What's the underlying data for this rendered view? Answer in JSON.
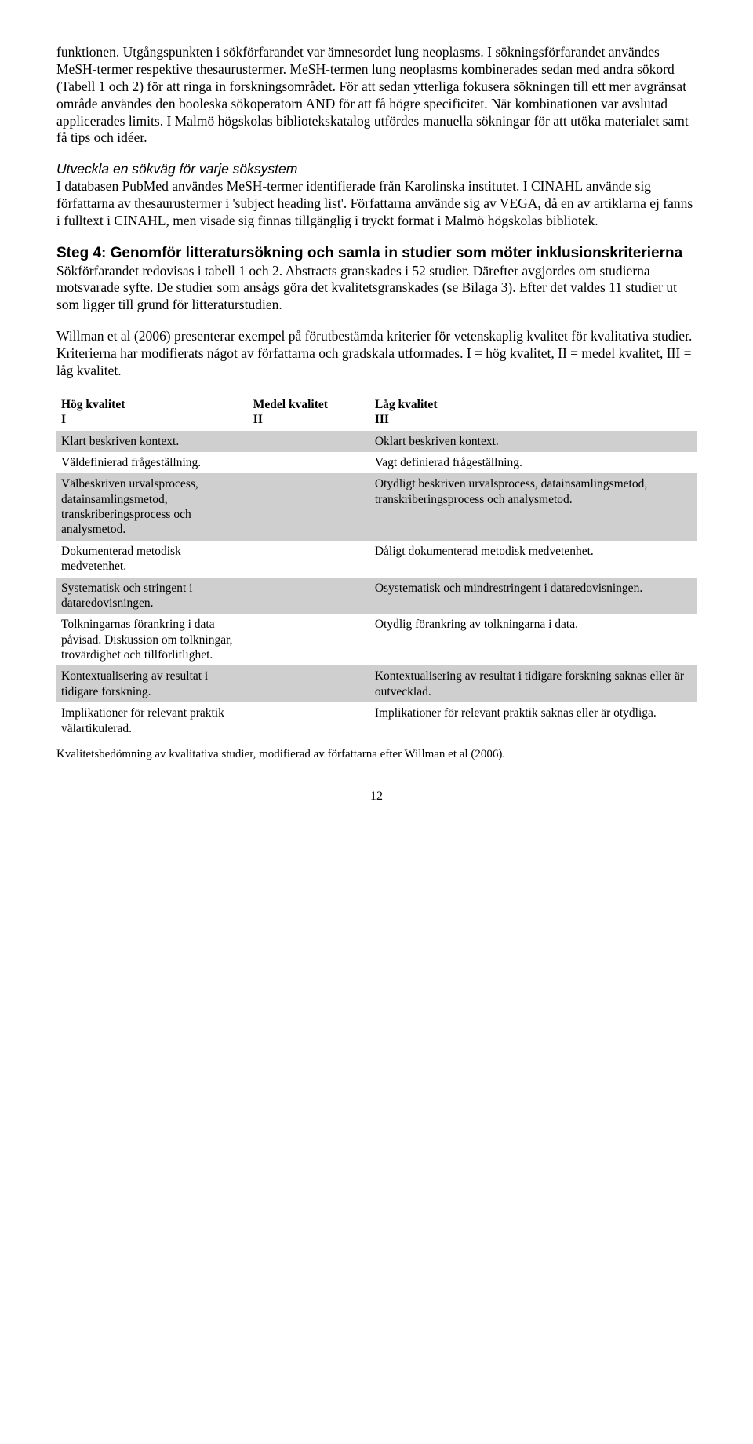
{
  "intro_para": "funktionen. Utgångspunkten i sökförfarandet var ämnesordet lung neoplasms. I sökningsförfarandet användes MeSH-termer respektive thesaurustermer. MeSH-termen lung neoplasms kombinerades sedan med andra sökord (Tabell 1 och 2) för att ringa in forskningsområdet. För att sedan ytterliga fokusera sökningen till ett mer avgränsat område användes den booleska sökoperatorn AND för att få högre specificitet. När kombinationen var avslutad applicerades limits. I Malmö högskolas bibliotekskatalog utfördes manuella sökningar för att utöka materialet samt få tips och idéer.",
  "sub1_heading": "Utveckla en sökväg för varje söksystem",
  "sub1_para": "I databasen PubMed användes MeSH-termer identifierade från Karolinska institutet. I CINAHL använde sig författarna av thesaurustermer i 'subject heading list'. Författarna använde sig av VEGA, då en av artiklarna ej fanns i fulltext i CINAHL, men visade sig finnas tillgänglig i tryckt format i Malmö högskolas bibliotek.",
  "h2_step4": "Steg 4: Genomför litteratursökning och samla in studier som möter inklusionskriterierna",
  "step4_para": "Sökförfarandet redovisas i tabell 1 och 2. Abstracts granskades i 52 studier. Därefter avgjordes om studierna motsvarade syfte. De studier som ansågs göra det kvalitetsgranskades (se Bilaga 3). Efter det valdes 11 studier ut som ligger till grund för litteraturstudien.",
  "willman_para": "Willman et al (2006) presenterar exempel på förutbestämda kriterier för vetenskaplig kvalitet för kvalitativa studier. Kriterierna har modifierats något av författarna och gradskala utformades. I = hög kvalitet, II = medel kvalitet, III = låg kvalitet.",
  "table": {
    "header": {
      "c1a": "Hög kvalitet",
      "c1b": "I",
      "c2a": "Medel kvalitet",
      "c2b": "II",
      "c3a": "Låg kvalitet",
      "c3b": "III"
    },
    "rows": [
      {
        "shaded": true,
        "c1": "Klart beskriven kontext.",
        "c2": "",
        "c3": "Oklart beskriven kontext."
      },
      {
        "shaded": false,
        "c1": "Väldefinierad frågeställning.",
        "c2": "",
        "c3": "Vagt definierad frågeställning."
      },
      {
        "shaded": true,
        "c1": "Välbeskriven urvalsprocess, datainsamlingsmetod, transkriberingsprocess och analysmetod.",
        "c2": "",
        "c3": "Otydligt beskriven urvalsprocess, datainsamlingsmetod, transkriberingsprocess och analysmetod."
      },
      {
        "shaded": false,
        "c1": "Dokumenterad metodisk medvetenhet.",
        "c2": "",
        "c3": "Dåligt dokumenterad metodisk medvetenhet."
      },
      {
        "shaded": true,
        "c1": "Systematisk och stringent i dataredovisningen.",
        "c2": "",
        "c3": "Osystematisk och mindrestringent i dataredovisningen."
      },
      {
        "shaded": false,
        "c1": "Tolkningarnas förankring i data påvisad. Diskussion om tolkningar, trovärdighet och tillförlitlighet.",
        "c2": "",
        "c3": "Otydlig förankring av tolkningarna i data."
      },
      {
        "shaded": true,
        "c1": "Kontextualisering av resultat i tidigare forskning.",
        "c2": "",
        "c3": "Kontextualisering av resultat i tidigare forskning saknas eller är outvecklad."
      },
      {
        "shaded": false,
        "c1": "Implikationer för relevant praktik välartikulerad.",
        "c2": "",
        "c3": "Implikationer för relevant praktik saknas eller är otydliga."
      }
    ]
  },
  "caption": "Kvalitetsbedömning av kvalitativa studier, modifierad av författarna efter Willman et al (2006).",
  "page_number": "12"
}
